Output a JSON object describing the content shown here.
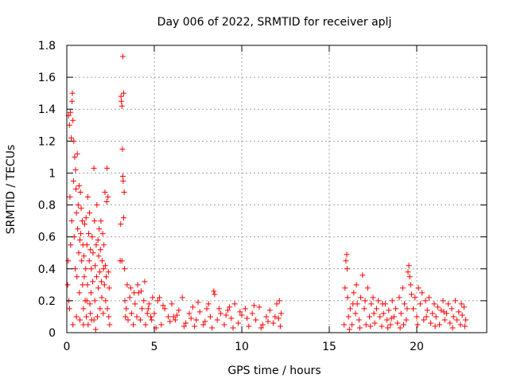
{
  "chart_data": {
    "type": "scatter",
    "title": "Day 006 of 2022, SRMTID for receiver aplj",
    "xlabel": "GPS time / hours",
    "ylabel": "SRMTID / TECUs",
    "xlim": [
      0,
      24
    ],
    "ylim": [
      0,
      1.8
    ],
    "xticks": [
      0,
      5,
      10,
      15,
      20
    ],
    "xtick_labels": [
      "0",
      "5",
      "10",
      "15",
      "20"
    ],
    "yticks": [
      0,
      0.2,
      0.4,
      0.6,
      0.8,
      1.0,
      1.2,
      1.4,
      1.6,
      1.8
    ],
    "ytick_labels": [
      "0",
      "0.2",
      "0.4",
      "0.6",
      "0.8",
      "1",
      "1.2",
      "1.4",
      "1.6",
      "1.8"
    ],
    "grid": true,
    "marker": "+",
    "marker_color": "#ff0000",
    "series": [
      {
        "name": "SRMTID",
        "points": [
          [
            0.05,
            0.3
          ],
          [
            0.08,
            0.45
          ],
          [
            0.1,
            1.36
          ],
          [
            0.12,
            0.2
          ],
          [
            0.15,
            1.3
          ],
          [
            0.18,
            0.85
          ],
          [
            0.2,
            1.38
          ],
          [
            0.22,
            0.55
          ],
          [
            0.25,
            1.22
          ],
          [
            0.28,
            0.7
          ],
          [
            0.3,
            1.45
          ],
          [
            0.32,
            1.5
          ],
          [
            0.35,
            1.33
          ],
          [
            0.38,
            0.95
          ],
          [
            0.4,
            1.2
          ],
          [
            0.42,
            0.6
          ],
          [
            0.45,
            1.1
          ],
          [
            0.48,
            0.4
          ],
          [
            0.5,
            1.02
          ],
          [
            0.52,
            0.9
          ],
          [
            0.55,
            0.75
          ],
          [
            0.58,
            0.35
          ],
          [
            0.6,
            1.12
          ],
          [
            0.62,
            0.65
          ],
          [
            0.65,
            0.8
          ],
          [
            0.68,
            0.5
          ],
          [
            0.7,
            0.92
          ],
          [
            0.72,
            0.25
          ],
          [
            0.75,
            0.58
          ],
          [
            0.78,
            0.88
          ],
          [
            0.8,
            0.62
          ],
          [
            0.82,
            0.78
          ],
          [
            0.85,
            0.45
          ],
          [
            0.88,
            0.7
          ],
          [
            0.9,
            0.3
          ],
          [
            0.92,
            0.55
          ],
          [
            0.95,
            0.15
          ],
          [
            0.98,
            0.48
          ],
          [
            1.0,
            0.35
          ],
          [
            1.02,
            0.68
          ],
          [
            1.05,
            0.2
          ],
          [
            1.08,
            0.4
          ],
          [
            1.1,
            0.72
          ],
          [
            1.12,
            0.1
          ],
          [
            1.15,
            0.55
          ],
          [
            1.18,
            0.3
          ],
          [
            1.2,
            0.85
          ],
          [
            1.22,
            0.05
          ],
          [
            1.25,
            0.62
          ],
          [
            1.28,
            0.45
          ],
          [
            1.3,
            0.75
          ],
          [
            1.32,
            0.18
          ],
          [
            1.35,
            0.52
          ],
          [
            1.38,
            0.25
          ],
          [
            1.4,
            0.4
          ],
          [
            1.42,
            0.08
          ],
          [
            1.45,
            0.6
          ],
          [
            1.48,
            0.32
          ],
          [
            1.5,
            0.5
          ],
          [
            1.55,
            1.03
          ],
          [
            1.58,
            0.7
          ],
          [
            1.6,
            0.2
          ],
          [
            1.62,
            0.42
          ],
          [
            1.65,
            0.02
          ],
          [
            1.68,
            0.55
          ],
          [
            1.7,
            0.35
          ],
          [
            1.72,
            0.8
          ],
          [
            1.75,
            0.1
          ],
          [
            1.78,
            0.58
          ],
          [
            1.8,
            0.28
          ],
          [
            1.82,
            0.48
          ],
          [
            1.85,
            0.65
          ],
          [
            1.88,
            0.38
          ],
          [
            1.9,
            0.15
          ],
          [
            1.92,
            0.52
          ],
          [
            1.95,
            0.7
          ],
          [
            1.98,
            0.32
          ],
          [
            2.0,
            0.22
          ],
          [
            2.02,
            0.45
          ],
          [
            2.05,
            0.62
          ],
          [
            2.08,
            0.12
          ],
          [
            2.1,
            0.4
          ],
          [
            2.12,
            0.55
          ],
          [
            2.15,
            0.3
          ],
          [
            2.18,
            0.88
          ],
          [
            2.2,
            0.42
          ],
          [
            2.22,
            0.2
          ],
          [
            2.25,
            0.35
          ],
          [
            2.28,
            0.82
          ],
          [
            2.3,
            1.03
          ],
          [
            2.32,
            0.15
          ],
          [
            2.35,
            0.85
          ],
          [
            2.38,
            0.38
          ],
          [
            2.4,
            0.1
          ],
          [
            2.42,
            0.28
          ],
          [
            2.45,
            0.05
          ],
          [
            0.15,
            0.15
          ],
          [
            0.35,
            0.05
          ],
          [
            0.55,
            0.1
          ],
          [
            0.75,
            0.08
          ],
          [
            0.95,
            0.05
          ],
          [
            1.15,
            0.2
          ],
          [
            1.35,
            0.12
          ],
          [
            1.55,
            0.08
          ],
          [
            3.05,
            0.45
          ],
          [
            3.1,
            1.48
          ],
          [
            3.12,
            1.45
          ],
          [
            3.15,
            1.42
          ],
          [
            3.18,
            1.15
          ],
          [
            3.2,
            0.98
          ],
          [
            3.22,
            0.95
          ],
          [
            3.25,
            0.72
          ],
          [
            3.28,
            0.88
          ],
          [
            3.3,
            0.4
          ],
          [
            3.32,
            0.2
          ],
          [
            3.35,
            0.1
          ],
          [
            3.2,
            1.73
          ],
          [
            3.25,
            1.5
          ],
          [
            3.08,
            0.68
          ],
          [
            3.15,
            0.45
          ],
          [
            3.4,
            0.15
          ],
          [
            3.5,
            0.08
          ],
          [
            3.6,
            0.22
          ],
          [
            3.7,
            0.12
          ],
          [
            3.8,
            0.05
          ],
          [
            3.9,
            0.18
          ],
          [
            4.0,
            0.1
          ],
          [
            4.1,
            0.25
          ],
          [
            4.2,
            0.08
          ],
          [
            4.3,
            0.15
          ],
          [
            4.4,
            0.2
          ],
          [
            4.5,
            0.05
          ],
          [
            4.6,
            0.12
          ],
          [
            4.7,
            0.18
          ],
          [
            4.8,
            0.1
          ],
          [
            4.9,
            0.22
          ],
          [
            3.45,
            0.3
          ],
          [
            3.65,
            0.28
          ],
          [
            3.85,
            0.25
          ],
          [
            4.05,
            0.3
          ],
          [
            4.25,
            0.26
          ],
          [
            4.45,
            0.32
          ],
          [
            4.65,
            0.15
          ],
          [
            4.85,
            0.08
          ],
          [
            5.0,
            0.12
          ],
          [
            5.2,
            0.2
          ],
          [
            5.4,
            0.05
          ],
          [
            5.6,
            0.15
          ],
          [
            5.8,
            0.1
          ],
          [
            6.0,
            0.18
          ],
          [
            6.2,
            0.08
          ],
          [
            6.4,
            0.14
          ],
          [
            6.6,
            0.22
          ],
          [
            6.8,
            0.06
          ],
          [
            7.0,
            0.12
          ],
          [
            7.2,
            0.16
          ],
          [
            7.4,
            0.08
          ],
          [
            7.6,
            0.13
          ],
          [
            7.8,
            0.05
          ],
          [
            8.0,
            0.15
          ],
          [
            8.2,
            0.1
          ],
          [
            8.4,
            0.26
          ],
          [
            8.45,
            0.24
          ],
          [
            8.6,
            0.08
          ],
          [
            8.8,
            0.12
          ],
          [
            9.0,
            0.05
          ],
          [
            9.2,
            0.14
          ],
          [
            9.4,
            0.09
          ],
          [
            9.6,
            0.18
          ],
          [
            9.8,
            0.06
          ],
          [
            10.0,
            0.11
          ],
          [
            10.2,
            0.15
          ],
          [
            10.4,
            0.04
          ],
          [
            10.6,
            0.12
          ],
          [
            10.8,
            0.08
          ],
          [
            11.0,
            0.16
          ],
          [
            11.2,
            0.05
          ],
          [
            11.4,
            0.1
          ],
          [
            11.6,
            0.14
          ],
          [
            11.8,
            0.06
          ],
          [
            12.0,
            0.18
          ],
          [
            12.1,
            0.09
          ],
          [
            12.2,
            0.04
          ],
          [
            12.25,
            0.12
          ],
          [
            5.1,
            0.03
          ],
          [
            5.5,
            0.17
          ],
          [
            5.9,
            0.07
          ],
          [
            6.3,
            0.11
          ],
          [
            6.7,
            0.04
          ],
          [
            7.1,
            0.09
          ],
          [
            7.5,
            0.19
          ],
          [
            7.9,
            0.07
          ],
          [
            8.3,
            0.03
          ],
          [
            8.7,
            0.15
          ],
          [
            9.1,
            0.11
          ],
          [
            9.5,
            0.03
          ],
          [
            9.9,
            0.13
          ],
          [
            10.3,
            0.09
          ],
          [
            10.7,
            0.17
          ],
          [
            11.1,
            0.03
          ],
          [
            11.5,
            0.07
          ],
          [
            11.9,
            0.1
          ],
          [
            12.15,
            0.2
          ],
          [
            5.3,
            0.22
          ],
          [
            6.1,
            0.1
          ],
          [
            7.3,
            0.04
          ],
          [
            8.1,
            0.18
          ],
          [
            9.3,
            0.16
          ],
          [
            15.85,
            0.05
          ],
          [
            15.9,
            0.28
          ],
          [
            15.95,
            0.45
          ],
          [
            16.0,
            0.49
          ],
          [
            16.02,
            0.4
          ],
          [
            16.05,
            0.22
          ],
          [
            16.1,
            0.1
          ],
          [
            16.2,
            0.15
          ],
          [
            16.3,
            0.05
          ],
          [
            16.4,
            0.25
          ],
          [
            16.5,
            0.12
          ],
          [
            16.6,
            0.18
          ],
          [
            16.7,
            0.08
          ],
          [
            16.8,
            0.22
          ],
          [
            16.9,
            0.36
          ],
          [
            17.0,
            0.15
          ],
          [
            17.1,
            0.05
          ],
          [
            17.2,
            0.28
          ],
          [
            17.3,
            0.1
          ],
          [
            17.4,
            0.18
          ],
          [
            17.5,
            0.22
          ],
          [
            17.6,
            0.06
          ],
          [
            17.7,
            0.15
          ],
          [
            17.8,
            0.2
          ],
          [
            17.9,
            0.1
          ],
          [
            18.0,
            0.04
          ],
          [
            18.1,
            0.12
          ],
          [
            18.2,
            0.18
          ],
          [
            18.3,
            0.08
          ],
          [
            18.4,
            0.14
          ],
          [
            18.5,
            0.05
          ],
          [
            18.6,
            0.2
          ],
          [
            18.7,
            0.1
          ],
          [
            18.8,
            0.15
          ],
          [
            18.9,
            0.06
          ],
          [
            19.0,
            0.22
          ],
          [
            19.1,
            0.12
          ],
          [
            19.2,
            0.28
          ],
          [
            19.3,
            0.18
          ],
          [
            19.4,
            0.08
          ],
          [
            19.5,
            0.38
          ],
          [
            19.55,
            0.42
          ],
          [
            19.6,
            0.35
          ],
          [
            19.65,
            0.3
          ],
          [
            19.7,
            0.24
          ],
          [
            19.8,
            0.15
          ],
          [
            19.9,
            0.22
          ],
          [
            20.0,
            0.1
          ],
          [
            20.1,
            0.28
          ],
          [
            20.2,
            0.18
          ],
          [
            20.3,
            0.25
          ],
          [
            20.4,
            0.08
          ],
          [
            20.5,
            0.2
          ],
          [
            20.6,
            0.14
          ],
          [
            20.7,
            0.22
          ],
          [
            20.8,
            0.06
          ],
          [
            20.9,
            0.12
          ],
          [
            21.0,
            0.18
          ],
          [
            21.1,
            0.1
          ],
          [
            21.2,
            0.16
          ],
          [
            21.3,
            0.05
          ],
          [
            21.4,
            0.14
          ],
          [
            21.5,
            0.2
          ],
          [
            21.6,
            0.08
          ],
          [
            21.7,
            0.12
          ],
          [
            21.8,
            0.18
          ],
          [
            21.9,
            0.06
          ],
          [
            22.0,
            0.15
          ],
          [
            22.1,
            0.1
          ],
          [
            22.2,
            0.2
          ],
          [
            22.3,
            0.08
          ],
          [
            22.4,
            0.13
          ],
          [
            22.5,
            0.05
          ],
          [
            22.6,
            0.11
          ],
          [
            22.7,
            0.16
          ],
          [
            22.75,
            0.04
          ],
          [
            22.8,
            0.08
          ],
          [
            16.15,
            0.02
          ],
          [
            16.55,
            0.3
          ],
          [
            17.05,
            0.2
          ],
          [
            17.55,
            0.12
          ],
          [
            18.05,
            0.18
          ],
          [
            18.55,
            0.09
          ],
          [
            19.05,
            0.03
          ],
          [
            19.45,
            0.15
          ],
          [
            20.05,
            0.05
          ],
          [
            20.55,
            0.1
          ],
          [
            21.05,
            0.04
          ],
          [
            21.55,
            0.13
          ],
          [
            22.05,
            0.03
          ],
          [
            22.55,
            0.18
          ],
          [
            16.35,
            0.18
          ],
          [
            16.75,
            0.03
          ],
          [
            17.35,
            0.04
          ],
          [
            18.35,
            0.03
          ],
          [
            19.25,
            0.05
          ]
        ]
      }
    ]
  }
}
